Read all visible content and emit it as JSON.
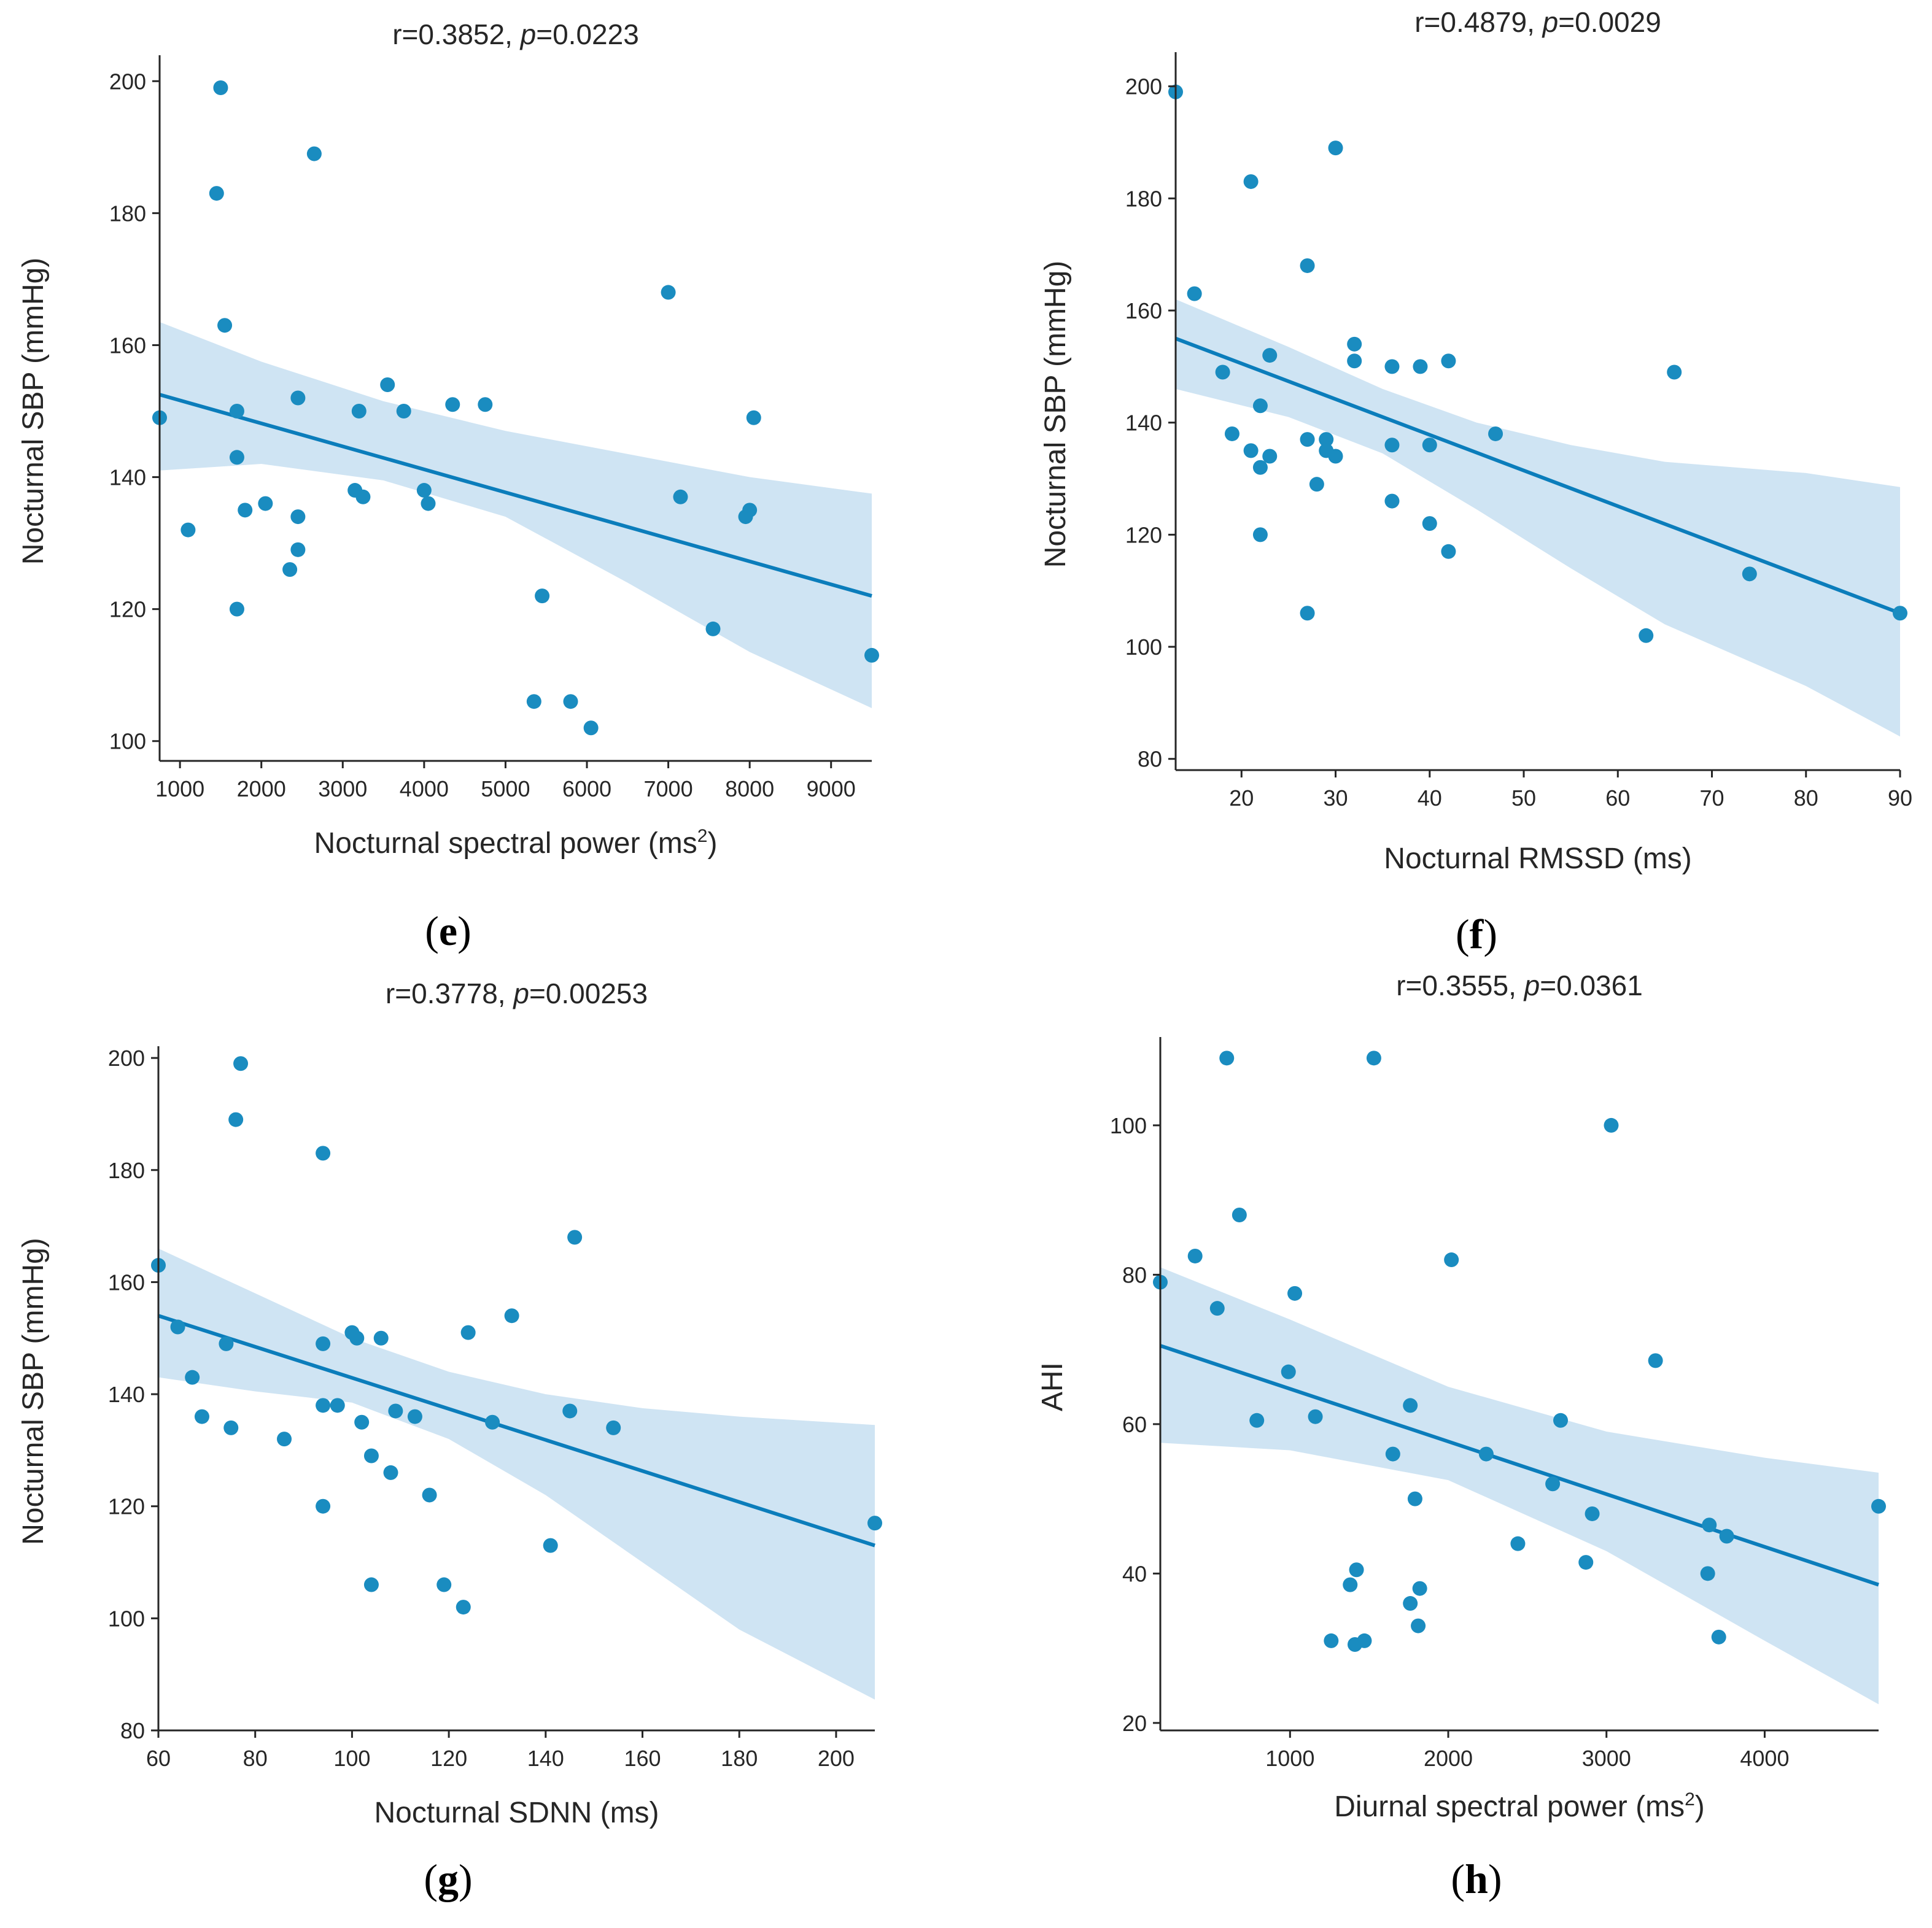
{
  "colors": {
    "point": "#1a8cc0",
    "line": "#0b7dbb",
    "band": "#cfe4f3",
    "axis": "#262626"
  },
  "chart_data": [
    {
      "id": "e",
      "type": "scatter",
      "panel_label": "e",
      "title_r": "r=0.3852, ",
      "title_p_sym": "p",
      "title_p_val": "=0.0223",
      "xlabel": "Nocturnal spectral power (ms",
      "xlabel_sup": "2",
      "xlabel_end": ")",
      "ylabel": "Nocturnal SBP (mmHg)",
      "xlim": [
        750,
        9500
      ],
      "ylim": [
        97,
        203
      ],
      "xticks": [
        1000,
        2000,
        3000,
        4000,
        5000,
        6000,
        7000,
        8000,
        9000
      ],
      "yticks": [
        100,
        120,
        140,
        160,
        180,
        200
      ],
      "regression": {
        "x": [
          750,
          9500
        ],
        "y": [
          152.5,
          122
        ]
      },
      "ci_upper": [
        [
          750,
          163.5
        ],
        [
          2000,
          157.5
        ],
        [
          3500,
          151.5
        ],
        [
          5000,
          147
        ],
        [
          6500,
          143.5
        ],
        [
          8000,
          140
        ],
        [
          9500,
          137.5
        ]
      ],
      "ci_lower": [
        [
          750,
          141
        ],
        [
          2000,
          142
        ],
        [
          3500,
          139.5
        ],
        [
          5000,
          134
        ],
        [
          6500,
          124
        ],
        [
          8000,
          113.5
        ],
        [
          9500,
          105
        ]
      ],
      "points": [
        [
          1500,
          199
        ],
        [
          2650,
          189
        ],
        [
          1450,
          183
        ],
        [
          1550,
          163
        ],
        [
          7000,
          168
        ],
        [
          750,
          149
        ],
        [
          1700,
          150
        ],
        [
          3200,
          150
        ],
        [
          3750,
          150
        ],
        [
          3550,
          154
        ],
        [
          4350,
          151
        ],
        [
          4750,
          151
        ],
        [
          2450,
          152
        ],
        [
          8050,
          149
        ],
        [
          1700,
          143
        ],
        [
          1100,
          132
        ],
        [
          1800,
          135
        ],
        [
          2050,
          136
        ],
        [
          2450,
          134
        ],
        [
          3150,
          138
        ],
        [
          3250,
          137
        ],
        [
          4000,
          138
        ],
        [
          4050,
          136
        ],
        [
          7150,
          137
        ],
        [
          8000,
          135
        ],
        [
          7950,
          134
        ],
        [
          2450,
          129
        ],
        [
          2350,
          126
        ],
        [
          1700,
          120
        ],
        [
          5450,
          122
        ],
        [
          7550,
          117
        ],
        [
          9500,
          113
        ],
        [
          5350,
          106
        ],
        [
          5800,
          106
        ],
        [
          6050,
          102
        ]
      ]
    },
    {
      "id": "f",
      "type": "scatter",
      "panel_label": "f",
      "title_r": "r=0.4879, ",
      "title_p_sym": "p",
      "title_p_val": "=0.0029",
      "xlabel": "Nocturnal RMSSD (ms)",
      "ylabel": "Nocturnal SBP (mmHg)",
      "xlim": [
        13,
        90
      ],
      "ylim": [
        78,
        205
      ],
      "xticks": [
        20,
        30,
        40,
        50,
        60,
        70,
        80,
        90
      ],
      "yticks": [
        80,
        100,
        120,
        140,
        160,
        180,
        200
      ],
      "regression": {
        "x": [
          13,
          90
        ],
        "y": [
          155,
          106
        ]
      },
      "ci_upper": [
        [
          13,
          162
        ],
        [
          25,
          153.5
        ],
        [
          35,
          146
        ],
        [
          45,
          140
        ],
        [
          55,
          136
        ],
        [
          65,
          133
        ],
        [
          80,
          131
        ],
        [
          90,
          128.5
        ]
      ],
      "ci_lower": [
        [
          13,
          146
        ],
        [
          25,
          141
        ],
        [
          35,
          134.5
        ],
        [
          45,
          124.5
        ],
        [
          55,
          114
        ],
        [
          65,
          104
        ],
        [
          80,
          93
        ],
        [
          90,
          84
        ]
      ],
      "points": [
        [
          13,
          199
        ],
        [
          30,
          189
        ],
        [
          21,
          183
        ],
        [
          27,
          168
        ],
        [
          15,
          163
        ],
        [
          18,
          149
        ],
        [
          22,
          143
        ],
        [
          23,
          152
        ],
        [
          32,
          154
        ],
        [
          32,
          151
        ],
        [
          36,
          150
        ],
        [
          39,
          150
        ],
        [
          42,
          151
        ],
        [
          66,
          149
        ],
        [
          19,
          138
        ],
        [
          21,
          135
        ],
        [
          22,
          132
        ],
        [
          23,
          134
        ],
        [
          27,
          137
        ],
        [
          29,
          137
        ],
        [
          29,
          135
        ],
        [
          30,
          134
        ],
        [
          28,
          129
        ],
        [
          36,
          136
        ],
        [
          40,
          136
        ],
        [
          47,
          138
        ],
        [
          22,
          120
        ],
        [
          36,
          126
        ],
        [
          40,
          122
        ],
        [
          42,
          117
        ],
        [
          27,
          106
        ],
        [
          74,
          113
        ],
        [
          63,
          102
        ],
        [
          90,
          106
        ]
      ]
    },
    {
      "id": "g",
      "type": "scatter",
      "panel_label": "g",
      "title_r": "r=0.3778, ",
      "title_p_sym": "p",
      "title_p_val": "=0.00253",
      "xlabel": "Nocturnal SDNN (ms)",
      "ylabel": "Nocturnal SBP (mmHg)",
      "xlim": [
        60,
        208
      ],
      "ylim": [
        80,
        201
      ],
      "xticks": [
        60,
        80,
        100,
        120,
        140,
        160,
        180,
        200
      ],
      "yticks": [
        80,
        100,
        120,
        140,
        160,
        180,
        200
      ],
      "regression": {
        "x": [
          60,
          208
        ],
        "y": [
          154,
          113
        ]
      },
      "ci_upper": [
        [
          60,
          166
        ],
        [
          80,
          158
        ],
        [
          100,
          150
        ],
        [
          120,
          144
        ],
        [
          140,
          140
        ],
        [
          160,
          137.5
        ],
        [
          180,
          136
        ],
        [
          208,
          134.5
        ]
      ],
      "ci_lower": [
        [
          60,
          143
        ],
        [
          80,
          140.5
        ],
        [
          100,
          138.5
        ],
        [
          120,
          132
        ],
        [
          140,
          122
        ],
        [
          160,
          110
        ],
        [
          180,
          98
        ],
        [
          208,
          85.5
        ]
      ],
      "points": [
        [
          77,
          199
        ],
        [
          76,
          189
        ],
        [
          94,
          183
        ],
        [
          60,
          163
        ],
        [
          64,
          152
        ],
        [
          74,
          149
        ],
        [
          94,
          149
        ],
        [
          100,
          151
        ],
        [
          101,
          150
        ],
        [
          106,
          150
        ],
        [
          124,
          151
        ],
        [
          133,
          154
        ],
        [
          146,
          168
        ],
        [
          67,
          143
        ],
        [
          69,
          136
        ],
        [
          75,
          134
        ],
        [
          86,
          132
        ],
        [
          94,
          138
        ],
        [
          97,
          138
        ],
        [
          102,
          135
        ],
        [
          109,
          137
        ],
        [
          113,
          136
        ],
        [
          129,
          135
        ],
        [
          145,
          137
        ],
        [
          154,
          134
        ],
        [
          104,
          129
        ],
        [
          108,
          126
        ],
        [
          116,
          122
        ],
        [
          94,
          120
        ],
        [
          141,
          113
        ],
        [
          104,
          106
        ],
        [
          119,
          106
        ],
        [
          123,
          102
        ],
        [
          208,
          117
        ]
      ]
    },
    {
      "id": "h",
      "type": "scatter",
      "panel_label": "h",
      "title_r": "r=0.3555, ",
      "title_p_sym": "p",
      "title_p_val": "=0.0361",
      "xlabel": "Diurnal spectral power (ms",
      "xlabel_sup": "2",
      "xlabel_end": ")",
      "ylabel": "AHI",
      "xlim": [
        180,
        4720
      ],
      "ylim": [
        19,
        111
      ],
      "xticks": [
        1000,
        2000,
        3000,
        4000
      ],
      "yticks": [
        20,
        40,
        60,
        80,
        100
      ],
      "regression": {
        "x": [
          180,
          4720
        ],
        "y": [
          70.5,
          38.5
        ]
      },
      "ci_upper": [
        [
          180,
          81
        ],
        [
          1000,
          74
        ],
        [
          2000,
          65
        ],
        [
          3000,
          59
        ],
        [
          4000,
          55.5
        ],
        [
          4720,
          53.5
        ]
      ],
      "ci_lower": [
        [
          180,
          57.5
        ],
        [
          1000,
          56.5
        ],
        [
          2000,
          52.5
        ],
        [
          3000,
          43
        ],
        [
          4000,
          31
        ],
        [
          4720,
          22.5
        ]
      ],
      "points": [
        [
          600,
          109
        ],
        [
          1530,
          109
        ],
        [
          3030,
          100
        ],
        [
          680,
          88
        ],
        [
          400,
          82.5
        ],
        [
          2020,
          82
        ],
        [
          180,
          79
        ],
        [
          540,
          75.5
        ],
        [
          1030,
          77.5
        ],
        [
          3310,
          68.5
        ],
        [
          990,
          67
        ],
        [
          790,
          60.5
        ],
        [
          1160,
          61
        ],
        [
          1760,
          62.5
        ],
        [
          2710,
          60.5
        ],
        [
          1650,
          56
        ],
        [
          2240,
          56
        ],
        [
          2660,
          52
        ],
        [
          1790,
          50
        ],
        [
          2910,
          48
        ],
        [
          2440,
          44
        ],
        [
          3650,
          46.5
        ],
        [
          3760,
          45
        ],
        [
          4720,
          49
        ],
        [
          2870,
          41.5
        ],
        [
          1420,
          40.5
        ],
        [
          1380,
          38.5
        ],
        [
          1820,
          38
        ],
        [
          1760,
          36
        ],
        [
          1810,
          33
        ],
        [
          3640,
          40
        ],
        [
          1260,
          31
        ],
        [
          1410,
          30.5
        ],
        [
          1470,
          31
        ],
        [
          3710,
          31.5
        ]
      ]
    }
  ]
}
